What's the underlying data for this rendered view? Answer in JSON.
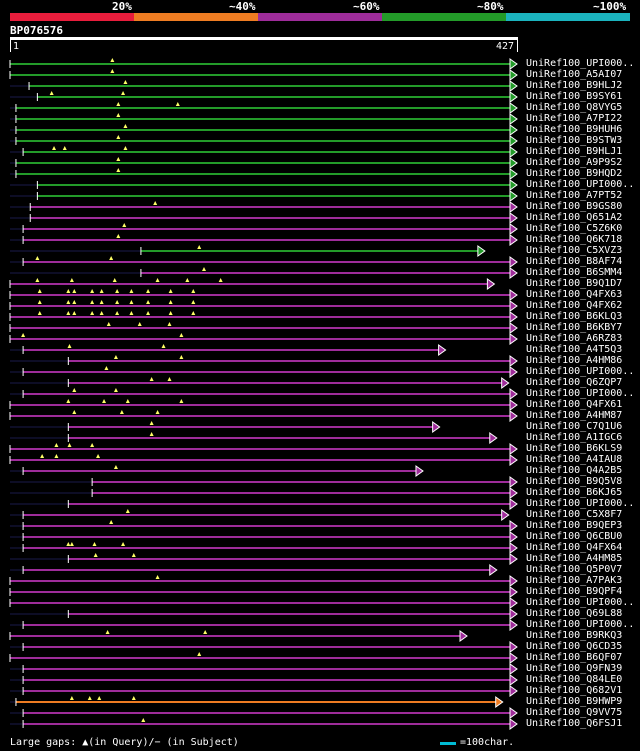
{
  "legend": {
    "labels": [
      "20%",
      "~40%",
      "~60%",
      "~80%",
      "~100%"
    ],
    "colors": [
      "#e81d3c",
      "#ee7c22",
      "#9e2c9a",
      "#239b29",
      "#1bb3be"
    ]
  },
  "query": {
    "name": "BP076576",
    "start_label": "1",
    "end_label": "427",
    "length": 427
  },
  "footer": {
    "gaps_text": "Large gaps: ▲(in Query)/− (in Subject)",
    "scale_text": "=100char."
  },
  "hits": [
    {
      "name": "UniRef100_UPI000..",
      "identity": "~80%",
      "end": 427,
      "start": 1,
      "gaps": [
        87
      ]
    },
    {
      "name": "UniRef100_A5AI07",
      "identity": "~80%",
      "end": 427,
      "start": 1,
      "gaps": [
        87
      ]
    },
    {
      "name": "UniRef100_B9HLJ2",
      "identity": "~80%",
      "end": 427,
      "start": 17,
      "gaps": [
        98
      ]
    },
    {
      "name": "UniRef100_B9SY61",
      "identity": "~80%",
      "end": 427,
      "start": 24,
      "gaps": [
        36,
        96
      ]
    },
    {
      "name": "UniRef100_Q8VYG5",
      "identity": "~80%",
      "end": 427,
      "start": 6,
      "gaps": [
        142,
        92
      ]
    },
    {
      "name": "UniRef100_A7PI22",
      "identity": "~80%",
      "end": 427,
      "start": 6,
      "gaps": [
        92
      ]
    },
    {
      "name": "UniRef100_B9HUH6",
      "identity": "~80%",
      "end": 427,
      "start": 6,
      "gaps": [
        98
      ]
    },
    {
      "name": "UniRef100_B9STW3",
      "identity": "~80%",
      "end": 427,
      "start": 6,
      "gaps": [
        92
      ]
    },
    {
      "name": "UniRef100_B9HLJ1",
      "identity": "~80%",
      "end": 427,
      "start": 12,
      "gaps": [
        38,
        47,
        98
      ]
    },
    {
      "name": "UniRef100_A9P9S2",
      "identity": "~80%",
      "end": 427,
      "start": 6,
      "gaps": [
        92
      ]
    },
    {
      "name": "UniRef100_B9HQD2",
      "identity": "~80%",
      "end": 427,
      "start": 6,
      "gaps": [
        92
      ]
    },
    {
      "name": "UniRef100_UPI000..",
      "identity": "~80%",
      "end": 427,
      "start": 24,
      "gaps": []
    },
    {
      "name": "UniRef100_A7PT52",
      "identity": "~80%",
      "end": 427,
      "start": 24,
      "gaps": []
    },
    {
      "name": "UniRef100_B9GS80",
      "identity": "~60%",
      "end": 427,
      "start": 18,
      "gaps": [
        123
      ]
    },
    {
      "name": "UniRef100_Q651A2",
      "identity": "~60%",
      "end": 427,
      "start": 18,
      "gaps": []
    },
    {
      "name": "UniRef100_C5Z6K0",
      "identity": "~60%",
      "end": 427,
      "start": 12,
      "gaps": [
        97
      ]
    },
    {
      "name": "UniRef100_Q6K718",
      "identity": "~60%",
      "end": 427,
      "start": 12,
      "gaps": [
        92
      ]
    },
    {
      "name": "UniRef100_C5XVZ3",
      "identity": "~80%",
      "end": 400,
      "start": 111,
      "gaps": [
        160
      ]
    },
    {
      "name": "UniRef100_B8AF74",
      "identity": "~60%",
      "end": 427,
      "start": 12,
      "gaps": [
        24,
        86
      ]
    },
    {
      "name": "UniRef100_B6SMM4",
      "identity": "~60%",
      "end": 427,
      "start": 111,
      "gaps": [
        164
      ]
    },
    {
      "name": "UniRef100_B9Q1D7",
      "identity": "~60%",
      "end": 408,
      "start": 1,
      "gaps": [
        24,
        53,
        89,
        125,
        150,
        178
      ]
    },
    {
      "name": "UniRef100_Q4FX63",
      "identity": "~60%",
      "end": 427,
      "start": 1,
      "gaps": [
        26,
        50,
        55,
        70,
        78,
        91,
        103,
        117,
        136,
        155
      ]
    },
    {
      "name": "UniRef100_Q4FX62",
      "identity": "~60%",
      "end": 427,
      "start": 1,
      "gaps": [
        26,
        50,
        55,
        70,
        78,
        91,
        103,
        117,
        136,
        155
      ]
    },
    {
      "name": "UniRef100_B6KLQ3",
      "identity": "~60%",
      "end": 427,
      "start": 1,
      "gaps": [
        26,
        50,
        55,
        70,
        78,
        91,
        103,
        117,
        136,
        155
      ]
    },
    {
      "name": "UniRef100_B6KBY7",
      "identity": "~60%",
      "end": 427,
      "start": 1,
      "gaps": [
        84,
        110,
        135
      ]
    },
    {
      "name": "UniRef100_A6RZ83",
      "identity": "~60%",
      "end": 427,
      "start": 1,
      "gaps": [
        12,
        145
      ]
    },
    {
      "name": "UniRef100_A4T5Q3",
      "identity": "~60%",
      "end": 367,
      "start": 12,
      "gaps": [
        51,
        130
      ]
    },
    {
      "name": "UniRef100_A4HM86",
      "identity": "~60%",
      "end": 427,
      "start": 50,
      "gaps": [
        90,
        145
      ]
    },
    {
      "name": "UniRef100_UPI000..",
      "identity": "~60%",
      "end": 427,
      "start": 12,
      "gaps": [
        82
      ]
    },
    {
      "name": "UniRef100_Q6ZQP7",
      "identity": "~60%",
      "end": 420,
      "start": 50,
      "gaps": [
        120,
        135
      ]
    },
    {
      "name": "UniRef100_UPI000..",
      "identity": "~60%",
      "end": 427,
      "start": 12,
      "gaps": [
        55,
        90
      ]
    },
    {
      "name": "UniRef100_Q4FX61",
      "identity": "~60%",
      "end": 427,
      "start": 1,
      "gaps": [
        50,
        80,
        100,
        145
      ]
    },
    {
      "name": "UniRef100_A4HM87",
      "identity": "~60%",
      "end": 427,
      "start": 1,
      "gaps": [
        55,
        95,
        125
      ]
    },
    {
      "name": "UniRef100_C7Q1U6",
      "identity": "~60%",
      "end": 362,
      "start": 50,
      "gaps": [
        120
      ]
    },
    {
      "name": "UniRef100_A1IGC6",
      "identity": "~60%",
      "end": 410,
      "start": 50,
      "gaps": [
        120
      ]
    },
    {
      "name": "UniRef100_B6KLS9",
      "identity": "~60%",
      "end": 427,
      "start": 1,
      "gaps": [
        40,
        51,
        70
      ]
    },
    {
      "name": "UniRef100_A4IAU8",
      "identity": "~60%",
      "end": 427,
      "start": 1,
      "gaps": [
        28,
        40,
        75
      ]
    },
    {
      "name": "UniRef100_Q4A2B5",
      "identity": "~60%",
      "end": 348,
      "start": 12,
      "gaps": [
        90
      ]
    },
    {
      "name": "UniRef100_B9Q5V8",
      "identity": "~60%",
      "end": 427,
      "start": 70,
      "gaps": []
    },
    {
      "name": "UniRef100_B6KJ65",
      "identity": "~60%",
      "end": 427,
      "start": 70,
      "gaps": []
    },
    {
      "name": "UniRef100_UPI000..",
      "identity": "~60%",
      "end": 427,
      "start": 50,
      "gaps": []
    },
    {
      "name": "UniRef100_C5X8F7",
      "identity": "~60%",
      "end": 420,
      "start": 12,
      "gaps": [
        100
      ]
    },
    {
      "name": "UniRef100_B9QEP3",
      "identity": "~60%",
      "end": 427,
      "start": 12,
      "gaps": [
        86
      ]
    },
    {
      "name": "UniRef100_Q6CBU0",
      "identity": "~60%",
      "end": 427,
      "start": 12,
      "gaps": []
    },
    {
      "name": "UniRef100_Q4FX64",
      "identity": "~60%",
      "end": 427,
      "start": 12,
      "gaps": [
        50,
        53,
        72,
        96
      ]
    },
    {
      "name": "UniRef100_A4HM85",
      "identity": "~60%",
      "end": 427,
      "start": 50,
      "gaps": [
        73,
        105
      ]
    },
    {
      "name": "UniRef100_Q5P0V7",
      "identity": "~60%",
      "end": 410,
      "start": 12,
      "gaps": []
    },
    {
      "name": "UniRef100_A7PAK3",
      "identity": "~60%",
      "end": 427,
      "start": 1,
      "gaps": [
        125
      ]
    },
    {
      "name": "UniRef100_B9QPF4",
      "identity": "~60%",
      "end": 427,
      "start": 1,
      "gaps": []
    },
    {
      "name": "UniRef100_UPI000..",
      "identity": "~60%",
      "end": 427,
      "start": 1,
      "gaps": []
    },
    {
      "name": "UniRef100_Q69L88",
      "identity": "~60%",
      "end": 427,
      "start": 50,
      "gaps": []
    },
    {
      "name": "UniRef100_UPI000..",
      "identity": "~60%",
      "end": 427,
      "start": 12,
      "gaps": []
    },
    {
      "name": "UniRef100_B9RKQ3",
      "identity": "~60%",
      "end": 385,
      "start": 1,
      "gaps": [
        83,
        165
      ]
    },
    {
      "name": "UniRef100_Q6CD35",
      "identity": "~60%",
      "end": 427,
      "start": 12,
      "gaps": []
    },
    {
      "name": "UniRef100_B6QF07",
      "identity": "~60%",
      "end": 427,
      "start": 1,
      "gaps": [
        160
      ]
    },
    {
      "name": "UniRef100_Q9FN39",
      "identity": "~60%",
      "end": 427,
      "start": 12,
      "gaps": []
    },
    {
      "name": "UniRef100_Q84LE0",
      "identity": "~60%",
      "end": 427,
      "start": 12,
      "gaps": []
    },
    {
      "name": "UniRef100_Q682V1",
      "identity": "~60%",
      "end": 427,
      "start": 12,
      "gaps": []
    },
    {
      "name": "UniRef100_B9HWP9",
      "identity": "~40%",
      "end": 415,
      "start": 6,
      "gaps": [
        53,
        68,
        76,
        105
      ]
    },
    {
      "name": "UniRef100_Q9VV75",
      "identity": "~60%",
      "end": 427,
      "start": 12,
      "gaps": []
    },
    {
      "name": "UniRef100_Q6FSJ1",
      "identity": "~60%",
      "end": 427,
      "start": 12,
      "gaps": [
        113
      ]
    }
  ]
}
